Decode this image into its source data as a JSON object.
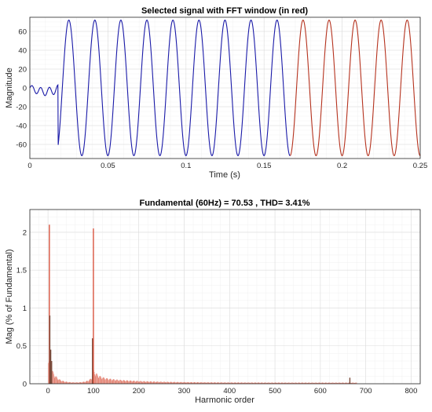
{
  "colors": {
    "signal": "#1a1aa8",
    "window": "#b5321e",
    "bar": "#d9543f"
  },
  "chart_data": [
    {
      "type": "line",
      "title": "Selected signal with FFT window (in red)",
      "xlabel": "Time (s)",
      "ylabel": "Magnitude",
      "xlim": [
        0,
        0.25
      ],
      "ylim": [
        -75,
        75
      ],
      "xticks": [
        "0",
        "0.05",
        "0.1",
        "0.15",
        "0.2",
        "0.25"
      ],
      "yticks": [
        "-60",
        "-40",
        "-20",
        "0",
        "20",
        "40",
        "60"
      ],
      "grid": true,
      "series": [
        {
          "color": "#1a1aa8",
          "x_range": [
            0,
            0.1667
          ],
          "amplitude_range": [
            0,
            72
          ],
          "frequency_hz": 60
        },
        {
          "color": "#b5321e",
          "x_range": [
            0.1667,
            0.25
          ],
          "amplitude": 72,
          "frequency_hz": 60
        }
      ]
    },
    {
      "type": "bar",
      "title": "Fundamental (60Hz) = 70.53 , THD= 3.41%",
      "xlabel": "Harmonic order",
      "ylabel": "Mag (% of Fundamental)",
      "xlim": [
        -40,
        820
      ],
      "ylim": [
        0,
        2.3
      ],
      "xticks": [
        "0",
        "100",
        "200",
        "300",
        "400",
        "500",
        "600",
        "700",
        "800"
      ],
      "yticks": [
        "0",
        "0.5",
        "1",
        "1.5",
        "2"
      ],
      "grid": true,
      "bars": [
        {
          "x": 3,
          "value": 2.1
        },
        {
          "x": 4,
          "value": 0.9
        },
        {
          "x": 6,
          "value": 0.45
        },
        {
          "x": 8,
          "value": 0.3
        },
        {
          "x": 98,
          "value": 0.6
        },
        {
          "x": 100,
          "value": 2.05
        },
        {
          "x": 665,
          "value": 0.08
        }
      ]
    }
  ]
}
